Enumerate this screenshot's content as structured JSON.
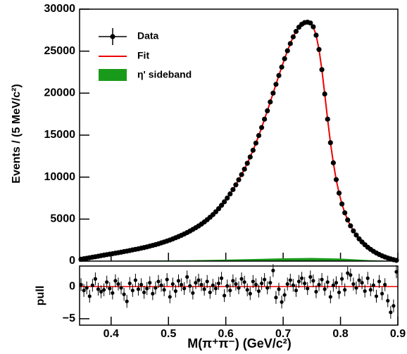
{
  "chart_data": [
    {
      "type": "hist-fit",
      "ylabel": "Events / (5 MeV/c²)",
      "ylim": [
        0,
        30000
      ],
      "yticks": [
        0,
        5000,
        10000,
        15000,
        20000,
        25000,
        30000
      ],
      "x": [
        0.3475,
        0.3525,
        0.3575,
        0.3625,
        0.3675,
        0.3725,
        0.3775,
        0.3825,
        0.3875,
        0.3925,
        0.3975,
        0.4025,
        0.4075,
        0.4125,
        0.4175,
        0.4225,
        0.4275,
        0.4325,
        0.4375,
        0.4425,
        0.4475,
        0.4525,
        0.4575,
        0.4625,
        0.4675,
        0.4725,
        0.4775,
        0.4825,
        0.4875,
        0.4925,
        0.4975,
        0.5025,
        0.5075,
        0.5125,
        0.5175,
        0.5225,
        0.5275,
        0.5325,
        0.5375,
        0.5425,
        0.5475,
        0.5525,
        0.5575,
        0.5625,
        0.5675,
        0.5725,
        0.5775,
        0.5825,
        0.5875,
        0.5925,
        0.5975,
        0.6025,
        0.6075,
        0.6125,
        0.6175,
        0.6225,
        0.6275,
        0.6325,
        0.6375,
        0.6425,
        0.6475,
        0.6525,
        0.6575,
        0.6625,
        0.6675,
        0.6725,
        0.6775,
        0.6825,
        0.6875,
        0.6925,
        0.6975,
        0.7025,
        0.7075,
        0.7125,
        0.7175,
        0.7225,
        0.7275,
        0.7325,
        0.7375,
        0.7425,
        0.7475,
        0.7525,
        0.7575,
        0.7625,
        0.7675,
        0.7725,
        0.7775,
        0.7825,
        0.7875,
        0.7925,
        0.7975,
        0.8025,
        0.8075,
        0.8125,
        0.8175,
        0.8225,
        0.8275,
        0.8325,
        0.8375,
        0.8425,
        0.8475,
        0.8525,
        0.8575,
        0.8625,
        0.8675,
        0.8725,
        0.8775,
        0.8825,
        0.8875,
        0.8925,
        0.8975
      ],
      "series": [
        {
          "name": "Data",
          "color": "#000000",
          "values": [
            220,
            280,
            340,
            400,
            460,
            520,
            580,
            650,
            710,
            770,
            830,
            880,
            940,
            1000,
            1060,
            1130,
            1190,
            1260,
            1330,
            1400,
            1460,
            1540,
            1610,
            1690,
            1780,
            1870,
            1960,
            2060,
            2170,
            2280,
            2390,
            2510,
            2640,
            2780,
            2920,
            3070,
            3230,
            3400,
            3580,
            3770,
            3970,
            4180,
            4410,
            4660,
            4930,
            5220,
            5530,
            5870,
            6240,
            6640,
            7060,
            7510,
            8000,
            8520,
            9080,
            9680,
            10300,
            10950,
            11650,
            12400,
            13200,
            14050,
            14950,
            15900,
            16900,
            17900,
            18950,
            20000,
            21050,
            22100,
            23100,
            24100,
            25050,
            25900,
            26700,
            27350,
            27850,
            28200,
            28400,
            28450,
            28350,
            27900,
            26900,
            25200,
            22800,
            19900,
            16900,
            14100,
            11700,
            9700,
            8100,
            6800,
            5750,
            4900,
            4200,
            3600,
            3100,
            2650,
            2280,
            1950,
            1650,
            1400,
            1170,
            970,
            790,
            630,
            490,
            370,
            260,
            170,
            90
          ]
        },
        {
          "name": "Fit",
          "color": "#ee0000",
          "values": [
            220,
            280,
            340,
            400,
            460,
            520,
            580,
            650,
            710,
            770,
            830,
            880,
            940,
            1000,
            1060,
            1130,
            1190,
            1260,
            1330,
            1400,
            1460,
            1540,
            1610,
            1690,
            1780,
            1870,
            1960,
            2060,
            2170,
            2280,
            2390,
            2510,
            2640,
            2780,
            2920,
            3070,
            3230,
            3400,
            3580,
            3770,
            3970,
            4180,
            4410,
            4660,
            4930,
            5220,
            5530,
            5870,
            6240,
            6640,
            7060,
            7510,
            8000,
            8520,
            9080,
            9680,
            10300,
            10950,
            11650,
            12400,
            13200,
            14050,
            14950,
            15900,
            16900,
            17900,
            18950,
            20000,
            21050,
            22100,
            23100,
            24100,
            25050,
            25900,
            26700,
            27350,
            27850,
            28200,
            28400,
            28450,
            28350,
            27900,
            26900,
            25200,
            22800,
            19900,
            16900,
            14100,
            11700,
            9700,
            8100,
            6800,
            5750,
            4900,
            4200,
            3600,
            3100,
            2650,
            2280,
            1950,
            1650,
            1400,
            1170,
            970,
            790,
            630,
            490,
            370,
            260,
            170,
            90
          ]
        },
        {
          "name": "η' sideband",
          "color": "#1a9a1a",
          "x": [
            0.345,
            0.4,
            0.45,
            0.5,
            0.55,
            0.6,
            0.65,
            0.7,
            0.75,
            0.8,
            0.85,
            0.9
          ],
          "values": [
            30,
            40,
            60,
            80,
            120,
            180,
            250,
            330,
            380,
            300,
            120,
            20
          ]
        }
      ]
    },
    {
      "type": "pull",
      "ylabel": "pull",
      "xlabel": "M(π⁺π⁻) (GeV/c²)",
      "xlim": [
        0.345,
        0.9
      ],
      "xticks": [
        0.4,
        0.5,
        0.6,
        0.7,
        0.8,
        0.9
      ],
      "ylim": [
        -6,
        3.2
      ],
      "yticks": [
        {
          "value": -5,
          "label": "−5"
        },
        0
      ],
      "error": 1,
      "values": [
        0.3,
        -0.6,
        -0.2,
        -1.5,
        0.2,
        1.2,
        -0.4,
        -0.8,
        -0.5,
        0.7,
        -0.3,
        -1.0,
        0.9,
        0.4,
        -0.2,
        -1.2,
        -2.3,
        0.5,
        -0.6,
        1.0,
        -0.4,
        0.3,
        -0.9,
        -0.3,
        0.6,
        -1.1,
        -0.2,
        0.8,
        0.2,
        -0.5,
        1.1,
        -1.6,
        0.4,
        -0.7,
        0.9,
        0.3,
        -0.3,
        1.5,
        0.1,
        -1.0,
        0.6,
        1.0,
        0.3,
        -0.4,
        0.8,
        -0.9,
        0.2,
        -0.3,
        0.5,
        1.3,
        -1.4,
        0.1,
        -0.6,
        0.9,
        0.4,
        -0.2,
        1.2,
        0.7,
        -0.5,
        -1.1,
        0.8,
        0.3,
        -0.7,
        0.5,
        1.1,
        -0.2,
        0.6,
        2.5,
        -1.7,
        -0.4,
        -2.4,
        -1.3,
        0.4,
        1.0,
        0.2,
        -0.6,
        0.8,
        1.3,
        0.5,
        -0.3,
        1.5,
        0.9,
        -0.8,
        0.3,
        1.1,
        -0.4,
        0.7,
        -1.6,
        0.2,
        0.6,
        -0.9,
        1.2,
        -0.5,
        2.1,
        1.8,
        0.4,
        -0.2,
        1.0,
        0.6,
        -0.7,
        1.3,
        -0.5,
        0.2,
        -1.5,
        0.8,
        -1.1,
        0.3,
        -2.2,
        -4.0,
        -3.0,
        2.3
      ]
    }
  ]
}
